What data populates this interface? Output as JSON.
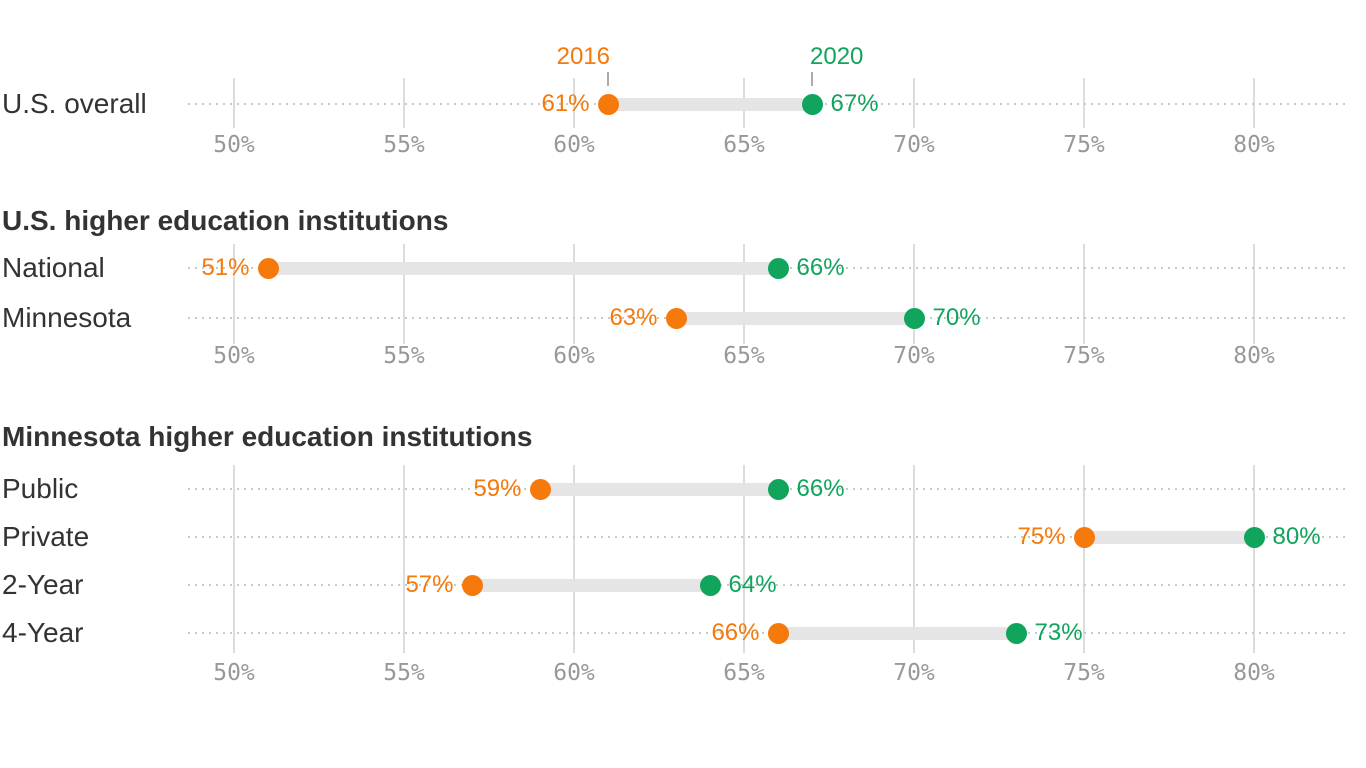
{
  "background_color": "#ffffff",
  "chart_data": {
    "type": "dumbbell",
    "unit": "%",
    "grid": "vertical-ticks-with-dotted-row-leaders",
    "legend": {
      "position": "above-first-row",
      "start_label": "2016",
      "end_label": "2020"
    },
    "colors": {
      "start": "#f5790b",
      "end": "#10a45c",
      "bar": "#e5e5e5",
      "tick_line": "#dcdcdc",
      "leader_dots": "#c9c9c9",
      "label_text": "#333335",
      "axis_text": "#96999c",
      "legend_connector": "#ababab"
    },
    "axis": {
      "min": 50,
      "max": 80,
      "step": 5,
      "ticks": [
        {
          "value": 50,
          "label": "50%"
        },
        {
          "value": 55,
          "label": "55%"
        },
        {
          "value": 60,
          "label": "60%"
        },
        {
          "value": 65,
          "label": "65%"
        },
        {
          "value": 70,
          "label": "70%"
        },
        {
          "value": 75,
          "label": "75%"
        },
        {
          "value": 80,
          "label": "80%"
        }
      ],
      "repeated_below_each_section": true
    },
    "sections": [
      {
        "heading": null,
        "show_legend": true,
        "rows": [
          {
            "label": "U.S. overall",
            "start": 61,
            "end": 67,
            "start_label": "61%",
            "end_label": "67%"
          }
        ]
      },
      {
        "heading": "U.S. higher education institutions",
        "show_legend": false,
        "rows": [
          {
            "label": "National",
            "start": 51,
            "end": 66,
            "start_label": "51%",
            "end_label": "66%"
          },
          {
            "label": "Minnesota",
            "start": 63,
            "end": 70,
            "start_label": "63%",
            "end_label": "70%"
          }
        ]
      },
      {
        "heading": "Minnesota higher education institutions",
        "show_legend": false,
        "rows": [
          {
            "label": "Public",
            "start": 59,
            "end": 66,
            "start_label": "59%",
            "end_label": "66%"
          },
          {
            "label": "Private",
            "start": 75,
            "end": 80,
            "start_label": "75%",
            "end_label": "80%"
          },
          {
            "label": "2-Year",
            "start": 57,
            "end": 64,
            "start_label": "57%",
            "end_label": "64%"
          },
          {
            "label": "4-Year",
            "start": 66,
            "end": 73,
            "start_label": "66%",
            "end_label": "73%"
          }
        ]
      }
    ]
  }
}
